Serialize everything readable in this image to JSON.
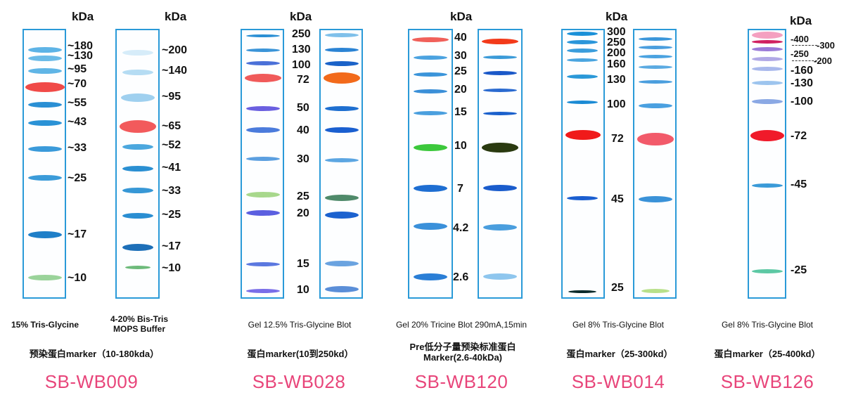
{
  "panels": [
    {
      "kda": "kDa",
      "left_labels": [
        "~180",
        "~130",
        "~95",
        "~70",
        "~55",
        "~43",
        "~33",
        "~25",
        "~17",
        "~10"
      ],
      "right_labels": [
        "~200",
        "~140",
        "~95",
        "~65",
        "~52",
        "~41",
        "~33",
        "~25",
        "~17",
        "~10"
      ],
      "gel_caption": "15% Tris-Glycine",
      "buffer_caption": "4-20% Bis-Tris\nMOPS Buffer",
      "title": "预染蛋白marker（10-180kda）",
      "code": "SB-WB009"
    },
    {
      "kda": "kDa",
      "labels": [
        "250",
        "130",
        "100",
        "72",
        "50",
        "40",
        "30",
        "25",
        "20",
        "15",
        "10"
      ],
      "caption": "Gel  12.5% Tris-Glycine  Blot",
      "title": "蛋白marker(10到250kd）",
      "code": "SB-WB028"
    },
    {
      "kda": "kDa",
      "labels": [
        "40",
        "30",
        "25",
        "20",
        "15",
        "10",
        "7",
        "4.2",
        "2.6"
      ],
      "caption": "Gel  20% Tricine  Blot  290mA,15min",
      "title_line1": "Pre低分子量预染标准蛋白",
      "title_line2": "Marker(2.6-40kDa)",
      "code": "SB-WB120"
    },
    {
      "kda": "kDa",
      "labels": [
        "300",
        "250",
        "200",
        "160",
        "130",
        "100",
        "72",
        "45",
        "25"
      ],
      "caption": "Gel  8% Tris-Glycine  Blot",
      "title": "蛋白marker（25-300kd）",
      "code": "SB-WB014"
    },
    {
      "kda": "kDa",
      "labels": [
        "-400",
        "-300",
        "-250",
        "-200",
        "-160",
        "-130",
        "-100",
        "-72",
        "-45",
        "-25"
      ],
      "caption": "Gel  8% Tris-Glycine  Blot",
      "title": "蛋白marker（25-400kd）",
      "code": "SB-WB126"
    }
  ],
  "band_colors": {
    "blue": "#2a9ad8",
    "deep_blue": "#1a5fd0",
    "red": "#f0423c",
    "orange": "#f26a1b",
    "green": "#5ec44a",
    "olive": "#8bbf5a",
    "purple": "#6a5fe0",
    "dark": "#0b2a2a"
  }
}
